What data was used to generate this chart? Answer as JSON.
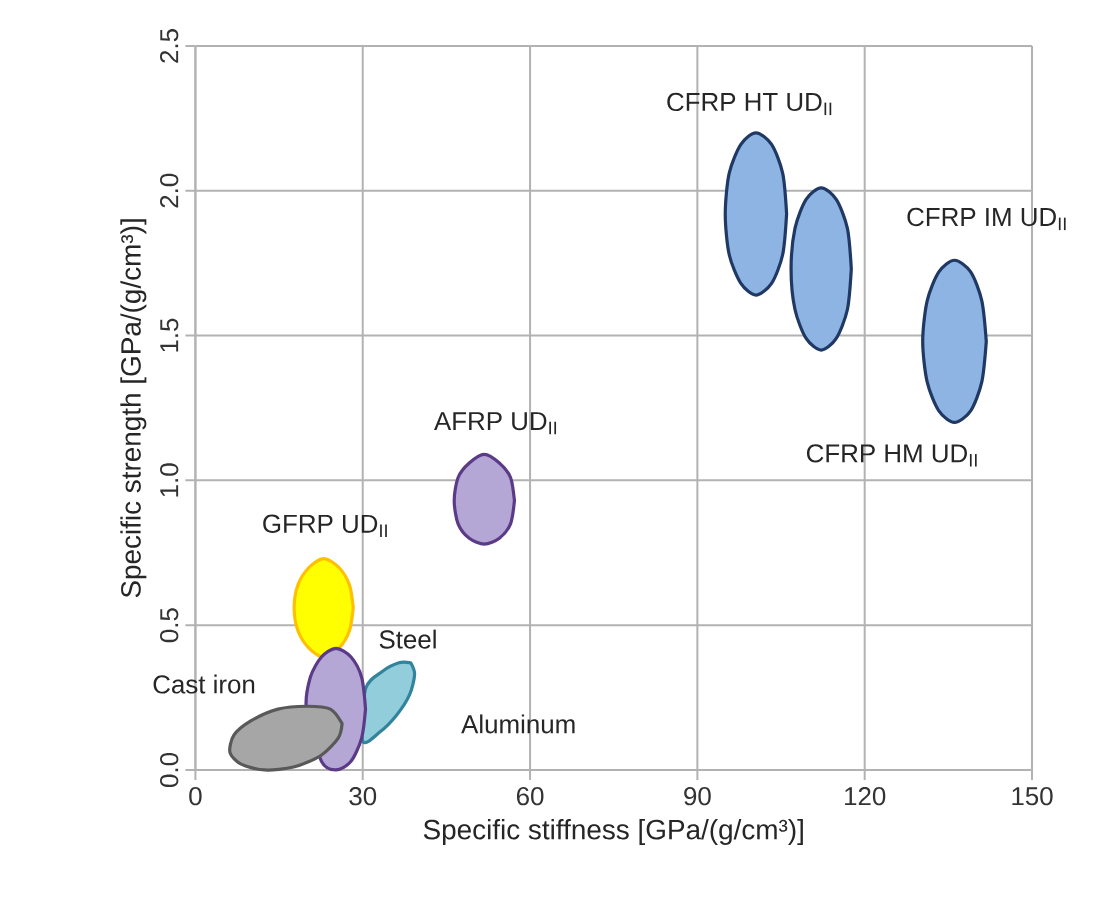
{
  "chart_data": {
    "type": "area",
    "xlabel": "Specific stiffness [GPa/(g/cm³)]",
    "ylabel": "Specific strength [GPa/(g/cm³)]",
    "xlim": [
      0,
      150
    ],
    "ylim": [
      0,
      2.5
    ],
    "xticks": [
      0,
      30,
      60,
      90,
      120,
      150
    ],
    "yticks": [
      {
        "value": 0,
        "label": "0.0"
      },
      {
        "value": 0.5,
        "label": "0.5"
      },
      {
        "value": 1,
        "label": "1.0"
      },
      {
        "value": 1.5,
        "label": "1.5"
      },
      {
        "value": 2,
        "label": "2.0"
      },
      {
        "value": 2.5,
        "label": "2.5"
      }
    ],
    "grid": true,
    "series": [
      {
        "name": "CFRP HT UD$_{II}$",
        "color": "#8db4e2",
        "x": [
          106.0,
          105.3,
          103.3,
          100.5,
          97.8,
          95.7,
          95.0,
          95.7,
          97.8,
          100.5,
          103.3,
          105.3
        ],
        "values": [
          1.92,
          2.06,
          2.16,
          2.2,
          2.16,
          2.06,
          1.92,
          1.78,
          1.68,
          1.64,
          1.68,
          1.78
        ]
      },
      {
        "name": "CFRP IM UD$_{II}$",
        "color": "#8db4e2",
        "x": [
          117.6,
          116.9,
          114.9,
          112.2,
          109.5,
          107.5,
          106.8,
          107.5,
          109.5,
          112.2,
          114.9,
          116.9
        ],
        "values": [
          1.73,
          1.87,
          1.97,
          2.01,
          1.97,
          1.87,
          1.73,
          1.59,
          1.49,
          1.45,
          1.49,
          1.59
        ]
      },
      {
        "name": "CFRP HM UD$_{II}$",
        "color": "#8db4e2",
        "x": [
          141.8,
          141.0,
          139.0,
          136.1,
          133.3,
          131.2,
          130.4,
          131.2,
          133.3,
          136.1,
          139.0,
          141.0
        ],
        "values": [
          1.48,
          1.62,
          1.72,
          1.76,
          1.72,
          1.62,
          1.48,
          1.34,
          1.24,
          1.2,
          1.24,
          1.34
        ]
      },
      {
        "name": "AFRP UD$_{II}$",
        "color": "#b4a7d6",
        "x": [
          57.2,
          56.5,
          54.5,
          51.8,
          49.1,
          47.1,
          46.4,
          47.1,
          49.1,
          51.8,
          54.5,
          56.5
        ],
        "values": [
          0.93,
          1.01,
          1.06,
          1.09,
          1.06,
          1.01,
          0.93,
          0.85,
          0.8,
          0.78,
          0.8,
          0.85
        ]
      },
      {
        "name": "GFRP UD$_{II}$",
        "color": "#ffff00",
        "x": [
          28.3,
          27.6,
          25.7,
          23.0,
          20.4,
          18.4,
          17.7,
          18.4,
          20.4,
          23.0,
          25.7,
          27.6
        ],
        "values": [
          0.56,
          0.64,
          0.7,
          0.73,
          0.7,
          0.64,
          0.56,
          0.48,
          0.42,
          0.39,
          0.42,
          0.48
        ]
      },
      {
        "name": "Aluminum",
        "color": "#92cddc",
        "x": [
          38.6,
          39.3,
          38.4,
          36.1,
          33.0,
          30.0,
          30.5,
          33.5,
          36.5
        ],
        "values": [
          0.37,
          0.33,
          0.26,
          0.19,
          0.13,
          0.1,
          0.28,
          0.34,
          0.37
        ]
      },
      {
        "name": "Steel",
        "color": "#b4a7d6",
        "x": [
          30.5,
          29.8,
          27.9,
          25.2,
          22.6,
          20.6,
          19.9,
          22.6,
          25.2,
          27.9,
          29.8
        ],
        "values": [
          0.21,
          0.32,
          0.39,
          0.42,
          0.39,
          0.32,
          0.21,
          0.03,
          0.0,
          0.03,
          0.11
        ]
      },
      {
        "name": "Cast iron",
        "color": "#a6a6a6",
        "x": [
          26.3,
          25.6,
          22.5,
          17.6,
          12.4,
          8.2,
          6.2,
          6.9,
          10.0,
          14.8,
          20.0,
          24.2
        ],
        "values": [
          0.16,
          0.11,
          0.05,
          0.01,
          0.0,
          0.02,
          0.06,
          0.12,
          0.17,
          0.21,
          0.22,
          0.21
        ]
      }
    ]
  }
}
